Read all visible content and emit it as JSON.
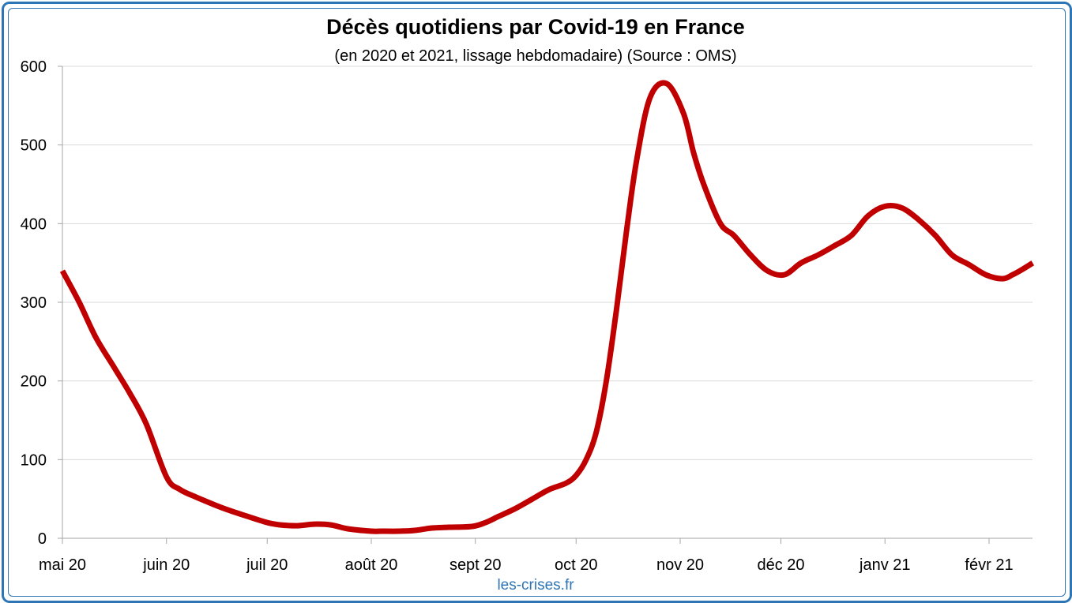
{
  "chart_data": {
    "type": "line",
    "title": "Décès quotidiens par Covid-19 en France",
    "subtitle": "(en 2020 et 2021, lissage hebdomadaire) (Source : OMS)",
    "xlabel": "",
    "ylabel": "",
    "ylim": [
      0,
      600
    ],
    "yticks": [
      0,
      100,
      200,
      300,
      400,
      500,
      600
    ],
    "xticks": [
      "mai 20",
      "juin 20",
      "juil 20",
      "août 20",
      "sept 20",
      "oct 20",
      "nov 20",
      "déc 20",
      "janv 21",
      "févr 21"
    ],
    "grid": true,
    "legend": "none",
    "source_note": "les-crises.fr",
    "series": [
      {
        "color": "#c00000",
        "x": [
          0,
          5,
          10,
          15,
          20,
          25,
          31,
          35,
          40,
          45,
          50,
          55,
          61,
          65,
          70,
          75,
          80,
          85,
          92,
          95,
          100,
          105,
          110,
          115,
          122,
          126,
          130,
          135,
          140,
          145,
          150,
          153,
          156,
          159,
          162,
          165,
          168,
          171,
          175,
          180,
          185,
          188,
          191,
          196,
          200,
          205,
          210,
          215,
          220,
          225,
          230,
          235,
          240,
          245,
          250,
          255,
          260,
          265,
          270,
          275,
          280,
          283,
          286,
          289
        ],
        "y": [
          340,
          300,
          255,
          220,
          185,
          145,
          78,
          62,
          52,
          43,
          35,
          28,
          20,
          17,
          16,
          18,
          17,
          12,
          9,
          9,
          9,
          10,
          13,
          14,
          15,
          20,
          28,
          38,
          50,
          62,
          70,
          80,
          100,
          135,
          200,
          290,
          390,
          480,
          560,
          578,
          540,
          490,
          450,
          400,
          385,
          360,
          340,
          335,
          350,
          360,
          372,
          385,
          410,
          422,
          420,
          405,
          385,
          360,
          348,
          335,
          330,
          335,
          342,
          350
        ]
      }
    ]
  }
}
